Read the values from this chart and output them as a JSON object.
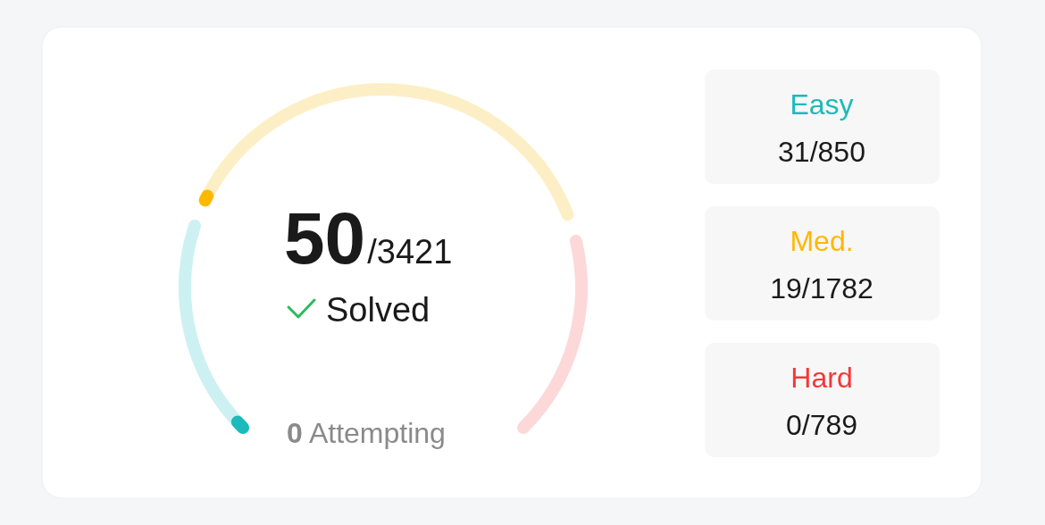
{
  "chart_data": {
    "type": "other",
    "categories": [
      "Easy",
      "Med.",
      "Hard"
    ],
    "colors": [
      "#1cbaba",
      "#ffb800",
      "#f63737"
    ],
    "series": [
      {
        "values": [
          31,
          19,
          0
        ],
        "value_labels": [
          "31",
          "19",
          "0"
        ]
      },
      {
        "values": [
          850,
          1782,
          789
        ],
        "value_labels": [
          "/850",
          "/1782",
          "/789"
        ],
        "colors": [
          "#cdf1f2",
          "#fdefc5",
          "#fdd8d8"
        ]
      }
    ],
    "annotations": [
      "50/3421",
      "Solved",
      "0 Attempting"
    ]
  }
}
